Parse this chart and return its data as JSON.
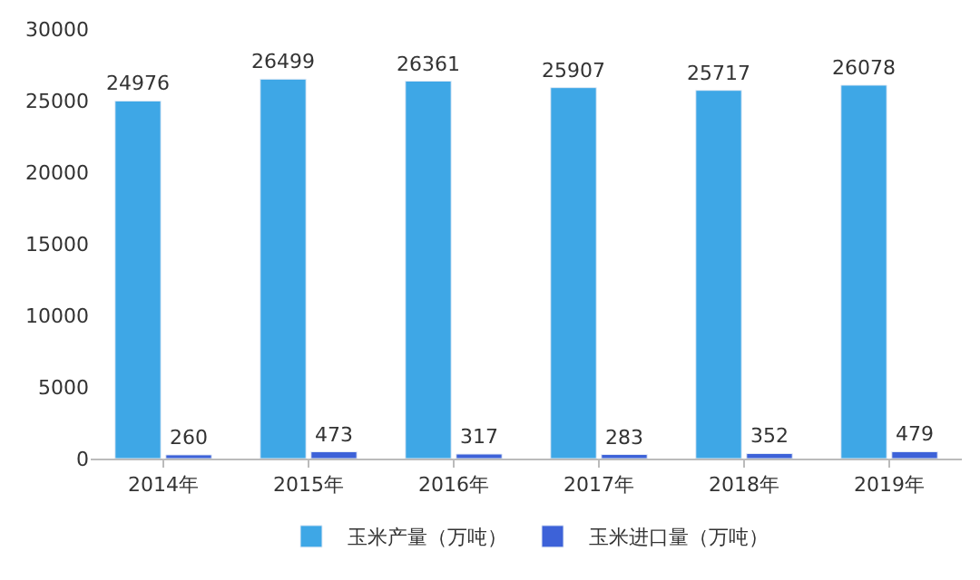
{
  "chart_data": {
    "type": "bar",
    "categories": [
      "2014年",
      "2015年",
      "2016年",
      "2017年",
      "2018年",
      "2019年"
    ],
    "series": [
      {
        "name": "玉米产量（万吨）",
        "color": "#3ea7e6",
        "values": [
          24976,
          26499,
          26361,
          25907,
          25717,
          26078
        ]
      },
      {
        "name": "玉米进口量（万吨）",
        "color": "#3d62d8",
        "values": [
          260,
          473,
          317,
          283,
          352,
          479
        ]
      }
    ],
    "ylim": [
      0,
      30000
    ],
    "yticks": [
      0,
      5000,
      10000,
      15000,
      20000,
      25000,
      30000
    ],
    "data_labels": true,
    "legend": "bottom"
  }
}
